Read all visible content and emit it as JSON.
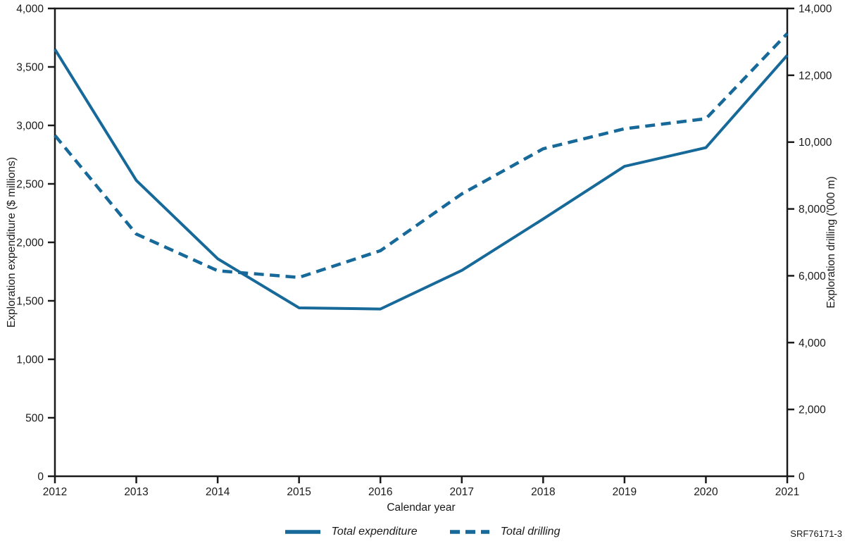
{
  "chart_data": {
    "type": "line",
    "title": "",
    "xlabel": "Calendar year",
    "ylabel_left": "Exploration expenditure ($ millions)",
    "ylabel_right": "Exploration drilling ('000 m)",
    "x": [
      2012,
      2013,
      2014,
      2015,
      2016,
      2017,
      2018,
      2019,
      2020,
      2021
    ],
    "x_tick_labels": [
      "2012",
      "2013",
      "2014",
      "2015",
      "2016",
      "2017",
      "2018",
      "2019",
      "2020",
      "2021"
    ],
    "y_left_range": [
      0,
      4000
    ],
    "y_right_range": [
      0,
      14000
    ],
    "y_left_ticks": [
      {
        "value": 0,
        "label": "0"
      },
      {
        "value": 500,
        "label": "500"
      },
      {
        "value": 1000,
        "label": "1,000"
      },
      {
        "value": 1500,
        "label": "1,500"
      },
      {
        "value": 2000,
        "label": "2,000"
      },
      {
        "value": 2500,
        "label": "2,500"
      },
      {
        "value": 3000,
        "label": "3,000"
      },
      {
        "value": 3500,
        "label": "3,500"
      },
      {
        "value": 4000,
        "label": "4,000"
      }
    ],
    "y_right_ticks": [
      {
        "value": 0,
        "label": "0"
      },
      {
        "value": 2000,
        "label": "2,000"
      },
      {
        "value": 4000,
        "label": "4,000"
      },
      {
        "value": 6000,
        "label": "6,000"
      },
      {
        "value": 8000,
        "label": "8,000"
      },
      {
        "value": 10000,
        "label": "10,000"
      },
      {
        "value": 12000,
        "label": "12,000"
      },
      {
        "value": 14000,
        "label": "14,000"
      }
    ],
    "series": [
      {
        "name": "Total expenditure",
        "axis": "left",
        "style": "solid",
        "values": [
          3650,
          2530,
          1860,
          1440,
          1430,
          1760,
          2200,
          2650,
          2810,
          3600
        ]
      },
      {
        "name": "Total drilling",
        "axis": "right",
        "style": "dashed",
        "values": [
          10200,
          7250,
          6150,
          5950,
          6750,
          8450,
          9800,
          10400,
          10700,
          13250
        ]
      }
    ],
    "grid": false,
    "legend_position": "bottom-center",
    "line_color": "#166999",
    "axis_color": "#1a1a1a"
  },
  "footnote": "SRF76171-3"
}
